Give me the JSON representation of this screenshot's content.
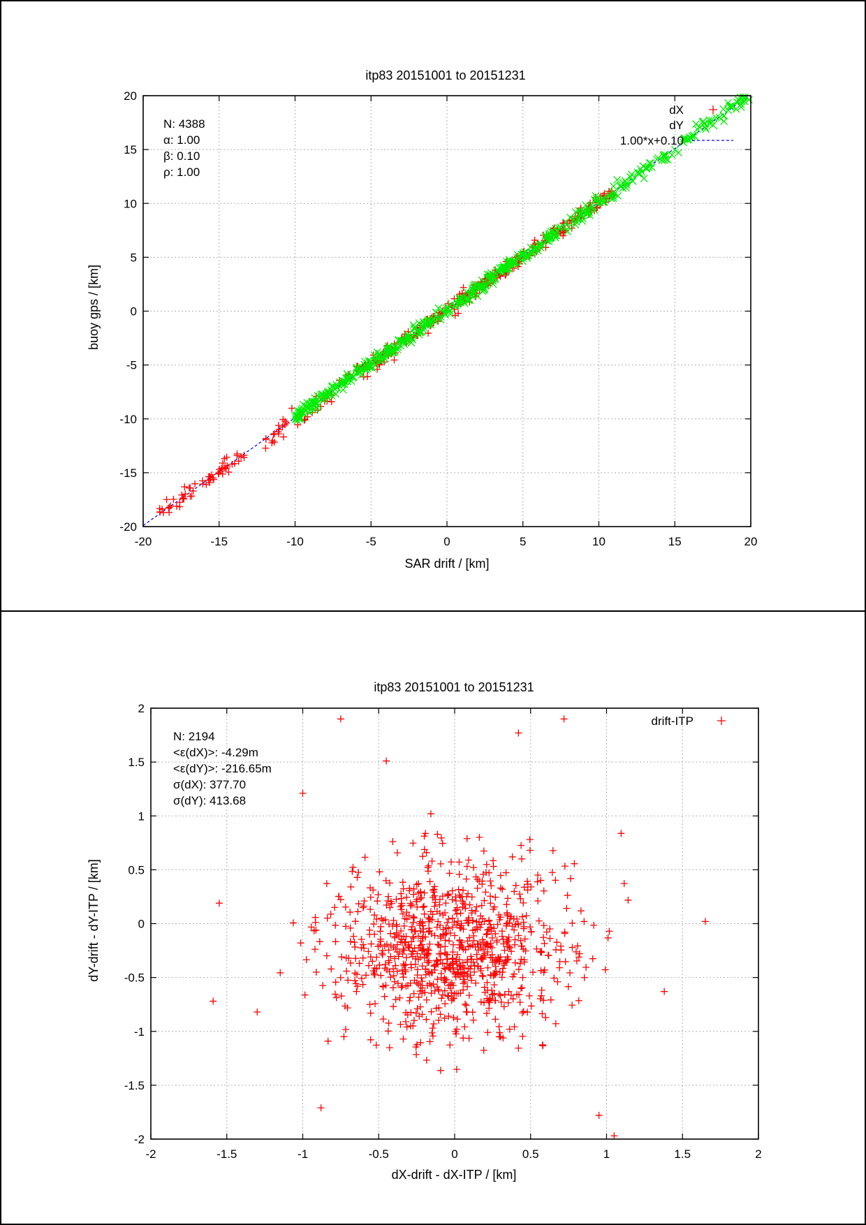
{
  "chart_data": [
    {
      "type": "scatter",
      "title": "itp83 20151001 to 20151231",
      "xlabel": "SAR drift / [km]",
      "ylabel": "buoy gps / [km]",
      "xlim": [
        -20,
        20
      ],
      "ylim": [
        -20,
        20
      ],
      "xticks": [
        -20,
        -15,
        -10,
        -5,
        0,
        5,
        10,
        15,
        20
      ],
      "yticks": [
        -20,
        -15,
        -10,
        -5,
        0,
        5,
        10,
        15,
        20
      ],
      "xtick_labels": [
        "-20",
        "-15",
        "-10",
        "-5",
        "0",
        "5",
        "10",
        "15",
        "20"
      ],
      "ytick_labels": [
        "-20",
        "-15",
        "-10",
        "-5",
        "0",
        "5",
        "10",
        "15",
        "20"
      ],
      "grid": true,
      "legend_position": "top-right",
      "stats_lines": [
        "N: 4388",
        "α: 1.00",
        "β: 0.10",
        "ρ: 1.00"
      ],
      "series": [
        {
          "name": "dX",
          "marker": "+",
          "color": "#ff0000",
          "ranges": [
            [
              -19,
              -13
            ],
            [
              -12,
              -6
            ],
            [
              -6,
              4
            ],
            [
              4,
              11
            ]
          ]
        },
        {
          "name": "dY",
          "marker": "x",
          "color": "#00ee00",
          "ranges": [
            [
              -10,
              11
            ],
            [
              11,
              20
            ]
          ]
        },
        {
          "name": "1.00*x+0.10",
          "type": "line",
          "color": "#0000ff",
          "dashed": true,
          "slope": 1.0,
          "intercept": 0.1,
          "x": [
            -20,
            20
          ]
        }
      ]
    },
    {
      "type": "scatter",
      "title": "itp83 20151001 to 20151231",
      "xlabel": "dX-drift - dX-ITP / [km]",
      "ylabel": "dY-drift - dY-ITP / [km]",
      "xlim": [
        -2,
        2
      ],
      "ylim": [
        -2,
        2
      ],
      "xticks": [
        -2,
        -1.5,
        -1,
        -0.5,
        0,
        0.5,
        1,
        1.5,
        2
      ],
      "yticks": [
        -2,
        -1.5,
        -1,
        -0.5,
        0,
        0.5,
        1,
        1.5,
        2
      ],
      "xtick_labels": [
        "-2",
        "-1.5",
        "-1",
        "-0.5",
        "0",
        "0.5",
        "1",
        "1.5",
        "2"
      ],
      "ytick_labels": [
        "-2",
        "-1.5",
        "-1",
        "-0.5",
        "0",
        "0.5",
        "1",
        "1.5",
        "2"
      ],
      "grid": true,
      "legend_position": "top-right",
      "stats_lines": [
        "N: 2194",
        "<ε(dX)>:  -4.29m",
        "<ε(dY)>: -216.65m",
        "σ(dX):  377.70",
        "σ(dY):  413.68"
      ],
      "series": [
        {
          "name": "drift-ITP",
          "marker": "+",
          "color": "#ff0000",
          "mean": [
            -0.004,
            -0.217
          ],
          "std": [
            0.378,
            0.414
          ],
          "points": [
            [
              -1.59,
              -0.72
            ],
            [
              1.65,
              0.02
            ],
            [
              -0.75,
              1.9
            ],
            [
              0.72,
              1.9
            ],
            [
              0.42,
              1.77
            ],
            [
              -0.45,
              1.51
            ],
            [
              -1.0,
              1.21
            ],
            [
              1.05,
              -1.97
            ],
            [
              -0.88,
              -1.71
            ],
            [
              -1.3,
              -0.82
            ],
            [
              -1.55,
              0.19
            ],
            [
              1.38,
              -0.63
            ],
            [
              0.95,
              -1.78
            ]
          ]
        }
      ]
    }
  ]
}
